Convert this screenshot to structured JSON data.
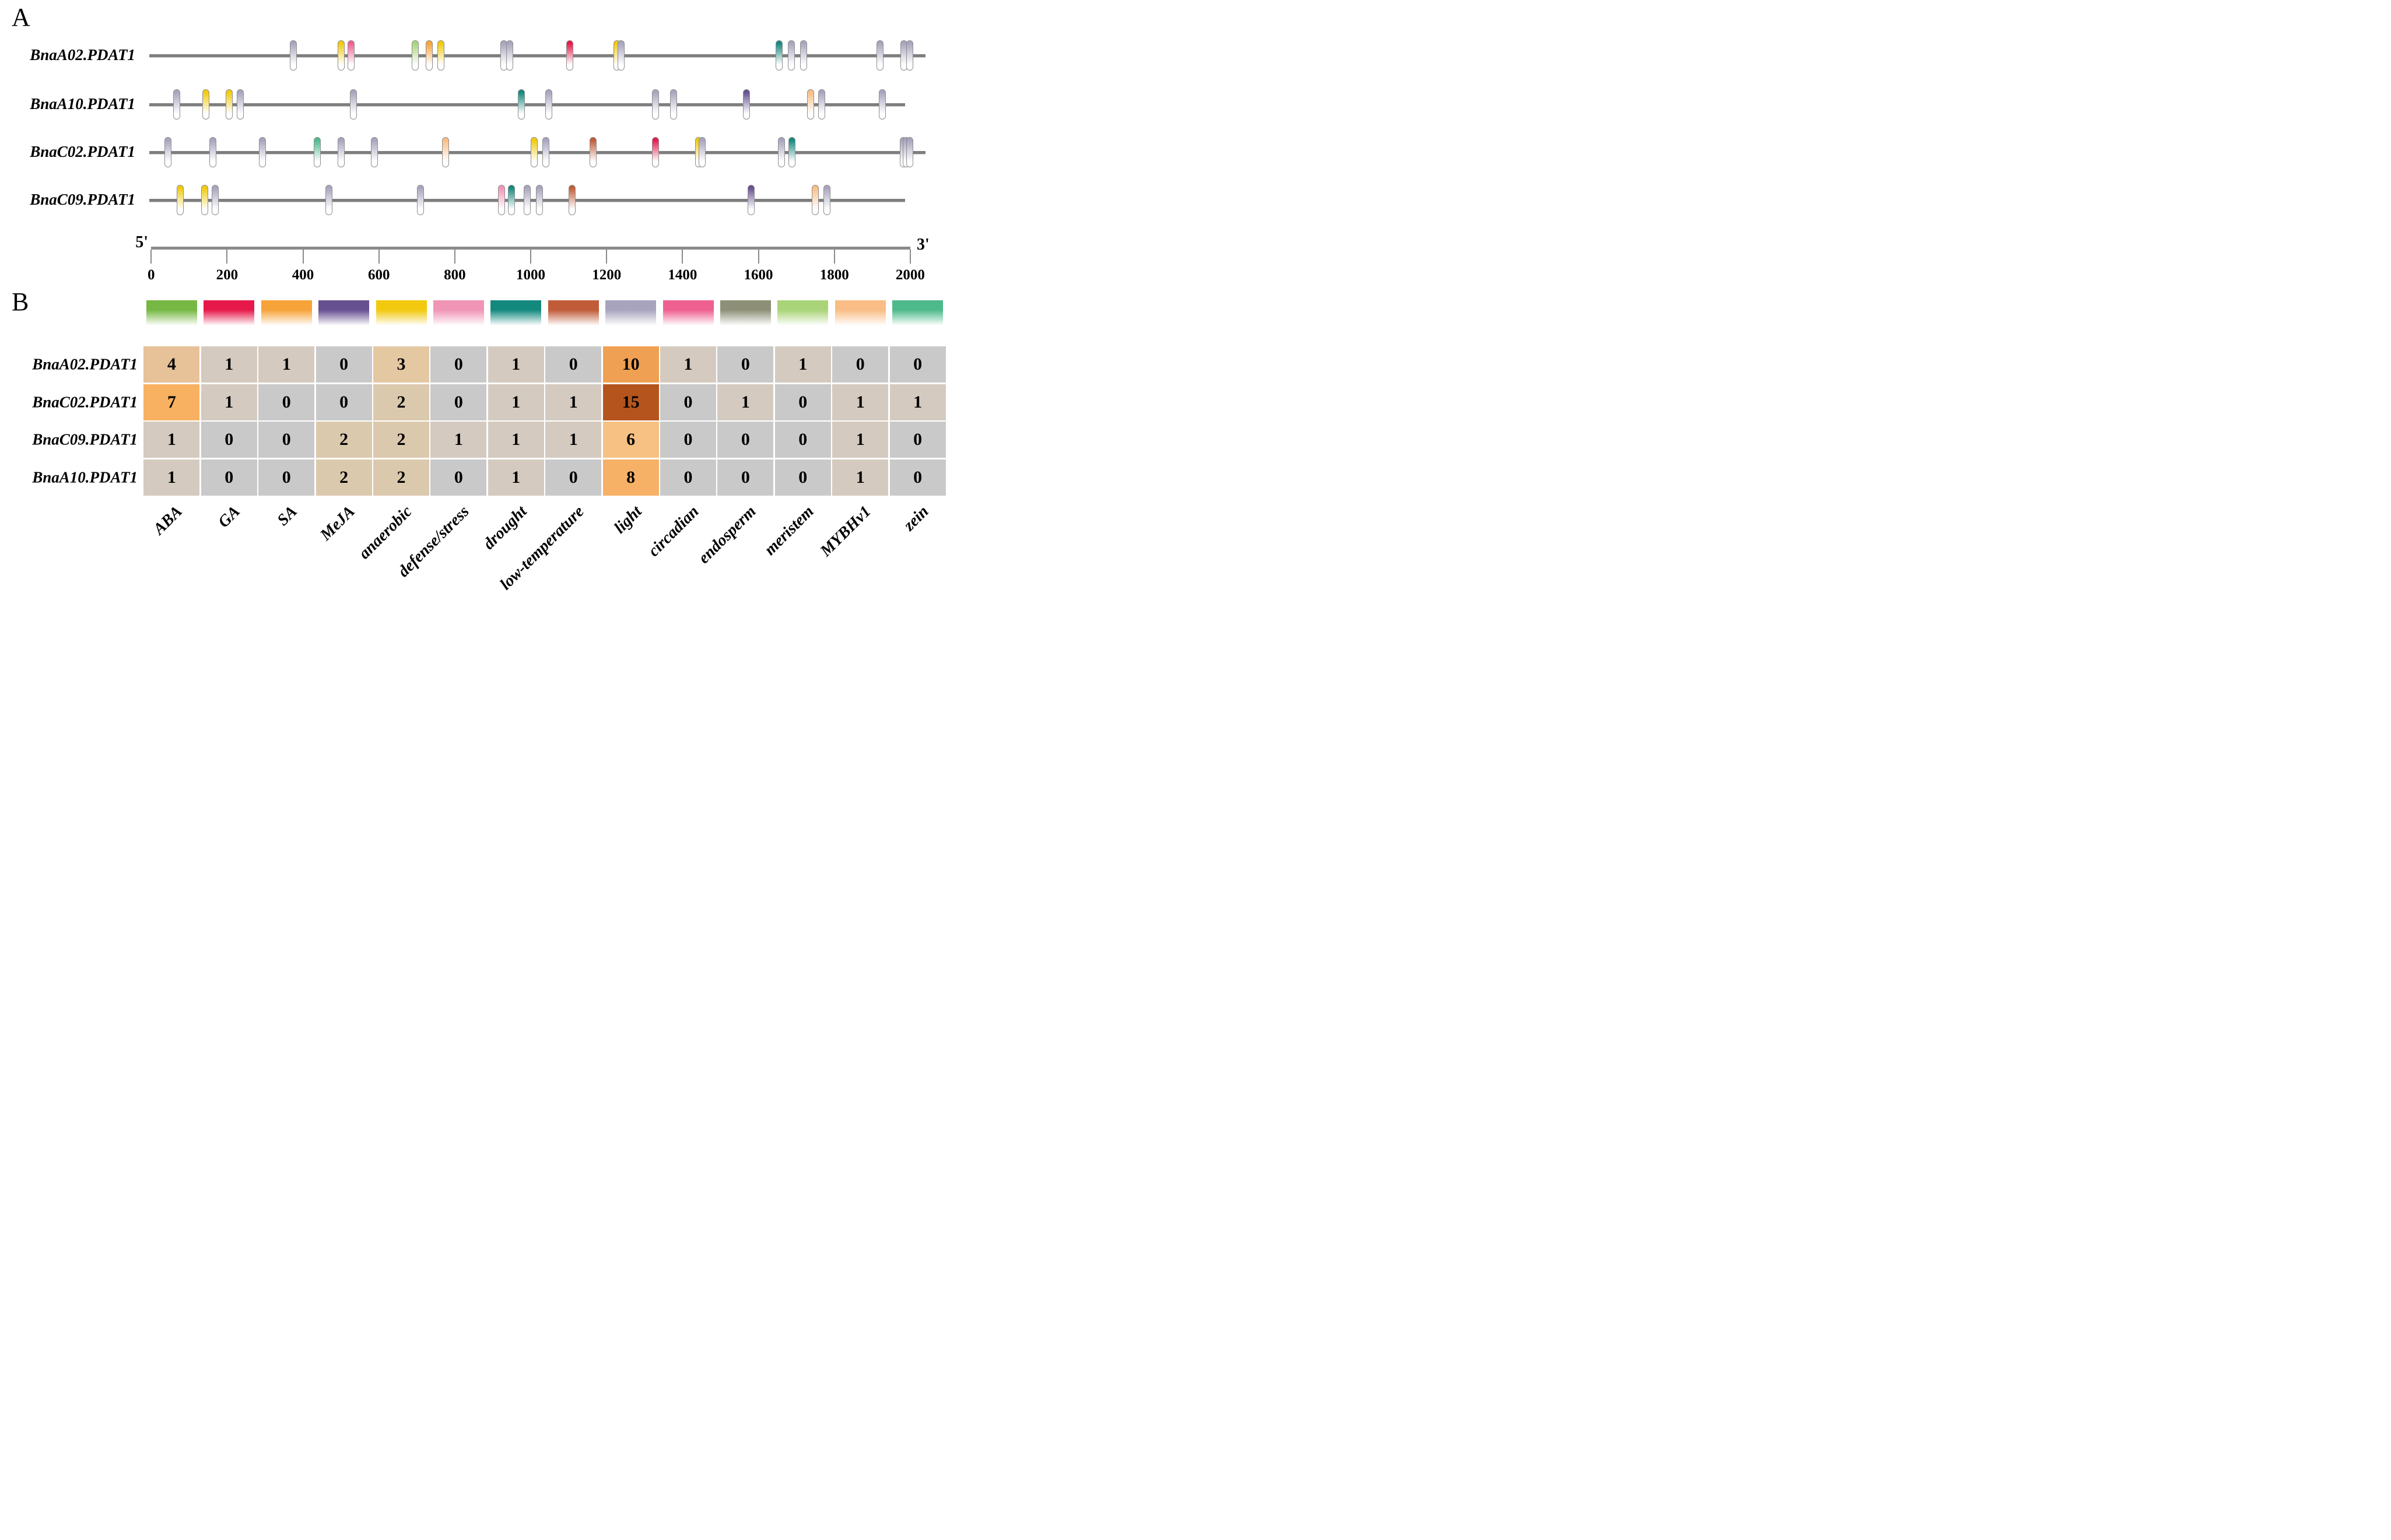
{
  "figure": {
    "panel_a_label": "A",
    "panel_b_label": "B"
  },
  "axis": {
    "five_prime_label": "5'",
    "three_prime_label": "3'",
    "min": 0,
    "max": 2000,
    "tick_labels": [
      "0",
      "200",
      "400",
      "600",
      "800",
      "1000",
      "1200",
      "1400",
      "1600",
      "1800",
      "2000"
    ]
  },
  "legend": {
    "categories": [
      {
        "label": "ABA",
        "color": "#76b843"
      },
      {
        "label": "GA",
        "color": "#e6194a"
      },
      {
        "label": "SA",
        "color": "#f6a339"
      },
      {
        "label": "MeJA",
        "color": "#665090"
      },
      {
        "label": "anaerobic",
        "color": "#f2c90e"
      },
      {
        "label": "defense/stress",
        "color": "#f095b5"
      },
      {
        "label": "drought",
        "color": "#13897e"
      },
      {
        "label": "low-temperature",
        "color": "#c05c38"
      },
      {
        "label": "light",
        "color": "#a8a4bd"
      },
      {
        "label": "circadian",
        "color": "#ee6090"
      },
      {
        "label": "endosperm",
        "color": "#8d9077"
      },
      {
        "label": "meristem",
        "color": "#aad478"
      },
      {
        "label": "MYBHv1",
        "color": "#f9bd85"
      },
      {
        "label": "zein",
        "color": "#4eba8b"
      }
    ]
  },
  "panel_a": {
    "genes": [
      {
        "name": "BnaA02.PDAT1",
        "line_end_bp": 2040,
        "elements": [
          {
            "bp": 374,
            "type": "light"
          },
          {
            "bp": 500,
            "type": "anaerobic"
          },
          {
            "bp": 527,
            "type": "circadian"
          },
          {
            "bp": 696,
            "type": "meristem"
          },
          {
            "bp": 733,
            "type": "SA"
          },
          {
            "bp": 764,
            "type": "anaerobic"
          },
          {
            "bp": 930,
            "type": "light"
          },
          {
            "bp": 944,
            "type": "light"
          },
          {
            "bp": 1103,
            "type": "GA"
          },
          {
            "bp": 1228,
            "type": "anaerobic"
          },
          {
            "bp": 1238,
            "type": "light"
          },
          {
            "bp": 1654,
            "type": "drought"
          },
          {
            "bp": 1687,
            "type": "light"
          },
          {
            "bp": 1719,
            "type": "light"
          },
          {
            "bp": 1921,
            "type": "light"
          },
          {
            "bp": 1984,
            "type": "light"
          },
          {
            "bp": 1998,
            "type": "light"
          }
        ]
      },
      {
        "name": "BnaA10.PDAT1",
        "line_end_bp": 1986,
        "elements": [
          {
            "bp": 68,
            "type": "light"
          },
          {
            "bp": 144,
            "type": "anaerobic"
          },
          {
            "bp": 205,
            "type": "anaerobic"
          },
          {
            "bp": 235,
            "type": "light"
          },
          {
            "bp": 533,
            "type": "light"
          },
          {
            "bp": 975,
            "type": "drought"
          },
          {
            "bp": 1048,
            "type": "light"
          },
          {
            "bp": 1328,
            "type": "light"
          },
          {
            "bp": 1376,
            "type": "light"
          },
          {
            "bp": 1568,
            "type": "MeJA"
          },
          {
            "bp": 1738,
            "type": "MYBHv1"
          },
          {
            "bp": 1767,
            "type": "light"
          },
          {
            "bp": 1926,
            "type": "light"
          }
        ]
      },
      {
        "name": "BnaC02.PDAT1",
        "line_end_bp": 2040,
        "elements": [
          {
            "bp": 44,
            "type": "light"
          },
          {
            "bp": 163,
            "type": "light"
          },
          {
            "bp": 293,
            "type": "light"
          },
          {
            "bp": 437,
            "type": "zein"
          },
          {
            "bp": 500,
            "type": "light"
          },
          {
            "bp": 588,
            "type": "light"
          },
          {
            "bp": 775,
            "type": "MYBHv1"
          },
          {
            "bp": 1009,
            "type": "anaerobic"
          },
          {
            "bp": 1040,
            "type": "light"
          },
          {
            "bp": 1164,
            "type": "low-temperature"
          },
          {
            "bp": 1328,
            "type": "GA"
          },
          {
            "bp": 1442,
            "type": "anaerobic"
          },
          {
            "bp": 1452,
            "type": "light"
          },
          {
            "bp": 1660,
            "type": "light"
          },
          {
            "bp": 1688,
            "type": "drought"
          },
          {
            "bp": 1981,
            "type": "light"
          },
          {
            "bp": 1989,
            "type": "light"
          },
          {
            "bp": 1998,
            "type": "light"
          }
        ]
      },
      {
        "name": "BnaC09.PDAT1",
        "line_end_bp": 1986,
        "elements": [
          {
            "bp": 76,
            "type": "anaerobic"
          },
          {
            "bp": 141,
            "type": "anaerobic"
          },
          {
            "bp": 169,
            "type": "light"
          },
          {
            "bp": 468,
            "type": "light"
          },
          {
            "bp": 709,
            "type": "light"
          },
          {
            "bp": 923,
            "type": "defense/stress"
          },
          {
            "bp": 949,
            "type": "drought"
          },
          {
            "bp": 991,
            "type": "light"
          },
          {
            "bp": 1023,
            "type": "light"
          },
          {
            "bp": 1109,
            "type": "low-temperature"
          },
          {
            "bp": 1580,
            "type": "MeJA"
          },
          {
            "bp": 1750,
            "type": "MYBHv1"
          },
          {
            "bp": 1781,
            "type": "light"
          }
        ]
      }
    ]
  },
  "chart_data": {
    "type": "heatmap",
    "rows": [
      "BnaA02.PDAT1",
      "BnaC02.PDAT1",
      "BnaC09.PDAT1",
      "BnaA10.PDAT1"
    ],
    "columns": [
      "ABA",
      "GA",
      "SA",
      "MeJA",
      "anaerobic",
      "defense/stress",
      "drought",
      "low-temperature",
      "light",
      "circadian",
      "endosperm",
      "meristem",
      "MYBHv1",
      "zein"
    ],
    "values": [
      [
        4,
        1,
        1,
        0,
        3,
        0,
        1,
        0,
        10,
        1,
        0,
        1,
        0,
        0
      ],
      [
        7,
        1,
        0,
        0,
        2,
        0,
        1,
        1,
        15,
        0,
        1,
        0,
        1,
        1
      ],
      [
        1,
        0,
        0,
        2,
        2,
        1,
        1,
        1,
        6,
        0,
        0,
        0,
        1,
        0
      ],
      [
        1,
        0,
        0,
        2,
        2,
        0,
        1,
        0,
        8,
        0,
        0,
        0,
        1,
        0
      ]
    ],
    "value_colors": {
      "0": "#c9c9ca",
      "1": "#d4cabf",
      "2": "#dbc9ad",
      "3": "#e4c8a2",
      "4": "#e7c197",
      "6": "#f6c183",
      "7": "#f8b160",
      "8": "#f7b166",
      "10": "#f0a052",
      "15": "#b5551d"
    },
    "x_axis_scale": {
      "min": 0,
      "max": 2000,
      "step": 200
    }
  }
}
